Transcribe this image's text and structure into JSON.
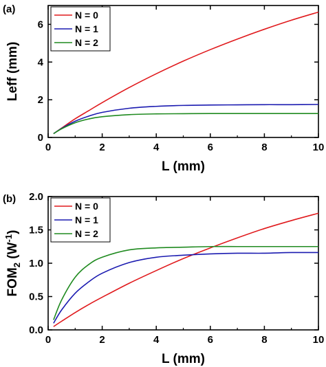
{
  "chart_data": [
    {
      "panel_label": "(a)",
      "type": "line",
      "xlabel": "L (mm)",
      "ylabel": "Leff (mm)",
      "xlim": [
        0,
        10
      ],
      "ylim": [
        0,
        7
      ],
      "xticks": [
        0,
        2,
        4,
        6,
        8,
        10
      ],
      "yticks": [
        0,
        2,
        4,
        6
      ],
      "grid": false,
      "legend_position": "top-left",
      "series": [
        {
          "name": "N = 0",
          "color": "#e0191c",
          "x": [
            0.2,
            0.5,
            1,
            1.5,
            2,
            3,
            4,
            5,
            6,
            7,
            8,
            9,
            10
          ],
          "y": [
            0.2,
            0.5,
            0.99,
            1.42,
            1.85,
            2.65,
            3.38,
            4.05,
            4.66,
            5.22,
            5.74,
            6.22,
            6.65
          ]
        },
        {
          "name": "N = 1",
          "color": "#1a1ab0",
          "x": [
            0.2,
            0.5,
            1,
            1.5,
            2,
            3,
            4,
            5,
            6,
            7,
            8,
            9,
            10
          ],
          "y": [
            0.2,
            0.48,
            0.86,
            1.13,
            1.33,
            1.55,
            1.65,
            1.7,
            1.72,
            1.73,
            1.74,
            1.74,
            1.75
          ]
        },
        {
          "name": "N = 2",
          "color": "#1f8a1f",
          "x": [
            0.2,
            0.5,
            1,
            1.5,
            2,
            3,
            4,
            5,
            6,
            7,
            8,
            9,
            10
          ],
          "y": [
            0.2,
            0.46,
            0.78,
            0.98,
            1.1,
            1.21,
            1.25,
            1.26,
            1.27,
            1.27,
            1.27,
            1.27,
            1.27
          ]
        }
      ]
    },
    {
      "panel_label": "(b)",
      "type": "line",
      "xlabel": "L (mm)",
      "ylabel": "FOM",
      "ylabel_sub": "2",
      "ylabel_unit_prefix": " (W",
      "ylabel_unit_sup": "-1",
      "ylabel_unit_suffix": ")",
      "xlim": [
        0,
        10
      ],
      "ylim": [
        0,
        2
      ],
      "xticks": [
        0,
        2,
        4,
        6,
        8,
        10
      ],
      "yticks": [
        0.0,
        0.5,
        1.0,
        1.5,
        2.0
      ],
      "ytick_labels": [
        "0.0",
        "0.5",
        "1.0",
        "1.5",
        "2.0"
      ],
      "grid": false,
      "legend_position": "top-left",
      "series": [
        {
          "name": "N = 0",
          "color": "#e0191c",
          "x": [
            0.2,
            0.5,
            1,
            1.5,
            2,
            3,
            4,
            5,
            6,
            7,
            8,
            9,
            10
          ],
          "y": [
            0.05,
            0.13,
            0.26,
            0.38,
            0.49,
            0.7,
            0.89,
            1.07,
            1.23,
            1.38,
            1.52,
            1.64,
            1.75
          ]
        },
        {
          "name": "N = 1",
          "color": "#1a1ab0",
          "x": [
            0.2,
            0.5,
            1,
            1.5,
            2,
            3,
            4,
            5,
            6,
            7,
            8,
            9,
            10
          ],
          "y": [
            0.1,
            0.3,
            0.55,
            0.72,
            0.85,
            1.01,
            1.09,
            1.12,
            1.14,
            1.15,
            1.15,
            1.16,
            1.16
          ]
        },
        {
          "name": "N = 2",
          "color": "#1f8a1f",
          "x": [
            0.2,
            0.5,
            1,
            1.5,
            2,
            3,
            4,
            5,
            6,
            7,
            8,
            9,
            10
          ],
          "y": [
            0.15,
            0.45,
            0.79,
            0.98,
            1.09,
            1.2,
            1.23,
            1.24,
            1.25,
            1.25,
            1.25,
            1.25,
            1.25
          ]
        }
      ]
    }
  ]
}
